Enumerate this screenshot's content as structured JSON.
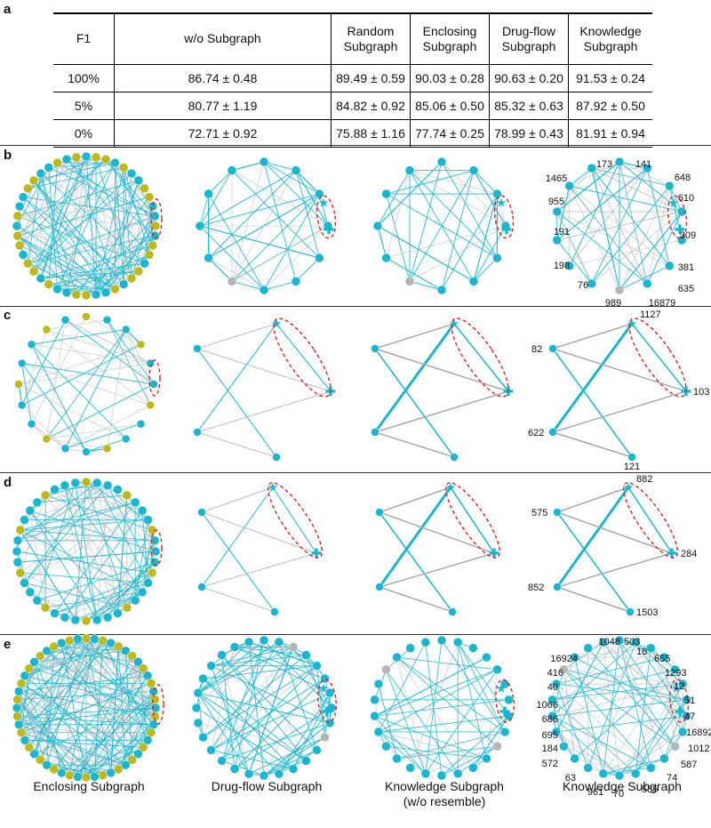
{
  "panels": {
    "a": "a",
    "b": "b",
    "c": "c",
    "d": "d",
    "e": "e"
  },
  "table": {
    "headers": [
      "F1",
      "w/o Subgraph",
      "Random Subgraph",
      "Enclosing Subgraph",
      "Drug-flow Subgraph",
      "Knowledge Subgraph"
    ],
    "rows": [
      [
        "100%",
        "86.74 ± 0.48",
        "89.49 ± 0.59",
        "90.03 ± 0.28",
        "90.63 ± 0.20",
        "91.53 ± 0.24"
      ],
      [
        "5%",
        "80.77 ± 1.19",
        "84.82 ± 0.92",
        "85.06 ± 0.50",
        "85.32 ± 0.63",
        "87.92 ± 0.50"
      ],
      [
        "0%",
        "72.71 ± 0.92",
        "75.88 ± 1.16",
        "77.74 ± 0.25",
        "78.99 ± 0.43",
        "81.91 ± 0.94"
      ]
    ]
  },
  "colors": {
    "cyan": "#1ab6d0",
    "olive": "#bfb81a",
    "gray_node": "#b5b5b5",
    "edge_gray": "#bdbdbd",
    "highlight": "#e02020"
  },
  "column_titles": {
    "c1": "Enclosing Subgraph",
    "c2": "Drug-flow Subgraph",
    "c3_line1": "Knowledge Subgraph",
    "c3_line2": "(w/o resemble)",
    "c4": "Knowledge Subgraph"
  },
  "node_labels": {
    "b": [
      "173",
      "141",
      "648",
      "610",
      "309",
      "381",
      "635",
      "16879",
      "989",
      "76",
      "198",
      "191",
      "955",
      "1465"
    ],
    "c": [
      "1127",
      "82",
      "103",
      "622",
      "121"
    ],
    "d": [
      "882",
      "575",
      "284",
      "852",
      "1503"
    ],
    "e": [
      "1048",
      "503",
      "18",
      "655",
      "1293",
      "12",
      "51",
      "47",
      "16892",
      "1012",
      "587",
      "74",
      "585",
      "70",
      "961",
      "63",
      "572",
      "184",
      "695",
      "686",
      "1066",
      "40",
      "416",
      "16924"
    ]
  }
}
